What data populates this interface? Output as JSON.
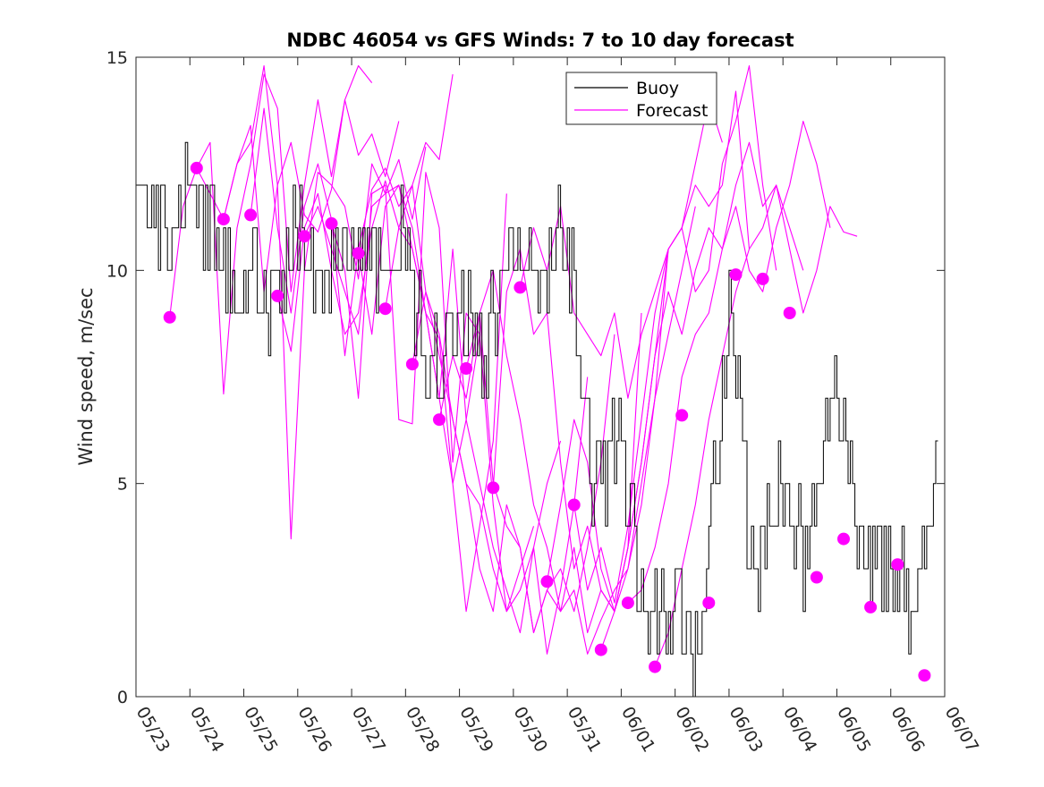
{
  "chart_data": {
    "type": "line",
    "title": "NDBC 46054 vs GFS Winds: 7 to 10 day forecast",
    "ylabel": "Wind speed, m/sec",
    "xlabel": "",
    "ylim": [
      0,
      15
    ],
    "yticks": [
      0,
      5,
      10,
      15
    ],
    "xlim": [
      "05/23",
      "06/07"
    ],
    "xticks": [
      "05/23",
      "05/24",
      "05/25",
      "05/26",
      "05/27",
      "05/28",
      "05/29",
      "05/30",
      "05/31",
      "06/01",
      "06/02",
      "06/03",
      "06/04",
      "06/05",
      "06/06",
      "06/07"
    ],
    "legend": {
      "placement": "top-center",
      "entries": [
        {
          "name": "Buoy",
          "color": "#000000"
        },
        {
          "name": "Forecast",
          "color": "#ff00ff"
        }
      ]
    },
    "grid": false,
    "buoy": {
      "name": "Buoy",
      "color": "#000000",
      "x_dates": [
        "05/23 00:00",
        "05/23 12:00",
        "05/24 00:00",
        "05/24 12:00",
        "05/25 00:00",
        "05/25 12:00",
        "05/26 00:00",
        "05/26 12:00",
        "05/27 00:00",
        "05/27 12:00",
        "05/28 00:00",
        "05/28 12:00",
        "05/29 00:00",
        "05/29 12:00",
        "05/30 00:00",
        "05/30 12:00",
        "05/31 00:00",
        "05/31 12:00",
        "06/01 00:00",
        "06/01 12:00",
        "06/02 00:00",
        "06/02 12:00",
        "06/03 00:00",
        "06/03 12:00",
        "06/04 00:00",
        "06/04 12:00",
        "06/05 00:00",
        "06/05 12:00",
        "06/06 00:00",
        "06/06 12:00",
        "06/06 21:00"
      ],
      "values": [
        12,
        11,
        12,
        11,
        10,
        9,
        11,
        10,
        11,
        10,
        11,
        7,
        9,
        8,
        11,
        9,
        11,
        5,
        6,
        2,
        2,
        1,
        9,
        3,
        5,
        3,
        8,
        3,
        3,
        2,
        5
      ]
    },
    "forecast_points": {
      "name": "Forecast",
      "color": "#ff00ff",
      "x_dates": [
        "05/23 15:00",
        "05/24 03:00",
        "05/24 15:00",
        "05/25 03:00",
        "05/25 15:00",
        "05/26 03:00",
        "05/26 15:00",
        "05/27 03:00",
        "05/27 15:00",
        "05/28 03:00",
        "05/28 15:00",
        "05/29 03:00",
        "05/29 15:00",
        "05/30 03:00",
        "05/30 15:00",
        "05/31 03:00",
        "05/31 15:00",
        "06/01 03:00",
        "06/01 15:00",
        "06/02 03:00",
        "06/02 15:00",
        "06/03 03:00",
        "06/03 15:00",
        "06/04 03:00",
        "06/04 15:00",
        "06/05 03:00",
        "06/05 15:00",
        "06/06 03:00",
        "06/06 15:00"
      ],
      "values": [
        8.9,
        12.4,
        11.2,
        11.3,
        9.4,
        10.8,
        11.1,
        10.4,
        9.1,
        7.8,
        6.5,
        7.7,
        4.9,
        9.6,
        2.7,
        4.5,
        1.1,
        2.2,
        0.7,
        6.6,
        2.2,
        9.9,
        9.8,
        9.0,
        2.8,
        3.7,
        2.1,
        3.1,
        0.5
      ]
    },
    "forecast_lines": {
      "name": "Forecast",
      "color": "#ff00ff",
      "note_series": [
        {
          "start": "05/23 15:00",
          "values": [
            8.9,
            11.5,
            12.4,
            13.0,
            7.1,
            11.0,
            12.5,
            14.6,
            13.8,
            9.5,
            12.0,
            14.0,
            12.2,
            14.0,
            14.8,
            14.4
          ]
        },
        {
          "start": "05/24 03:00",
          "values": [
            12.4,
            11.8,
            11.2,
            12.5,
            13.4,
            9.5,
            12.0,
            13.0,
            11.3,
            10.9,
            11.9,
            14.0,
            12.7,
            13.2,
            12.2,
            13.5
          ]
        },
        {
          "start": "05/24 15:00",
          "values": [
            11.2,
            12.5,
            13.0,
            14.8,
            12.0,
            3.7,
            10.0,
            12.3,
            12.0,
            11.5,
            9.8,
            12.5,
            11.8,
            12.6,
            11.2,
            12.9
          ]
        },
        {
          "start": "05/25 03:00",
          "values": [
            11.3,
            13.8,
            11.0,
            9.0,
            11.5,
            12.5,
            11.2,
            8.0,
            10.5,
            11.9,
            12.4,
            11.5,
            12.0,
            13.0,
            12.6,
            14.6
          ]
        },
        {
          "start": "05/25 15:00",
          "values": [
            9.4,
            8.1,
            11.0,
            11.8,
            10.0,
            8.5,
            9.0,
            11.0,
            12.1,
            11.0,
            10.5,
            9.0,
            7.0,
            5.0,
            6.5,
            8.5
          ]
        },
        {
          "start": "05/26 03:00",
          "values": [
            10.8,
            11.5,
            10.5,
            9.5,
            8.5,
            11.5,
            11.8,
            12.0,
            11.0,
            9.0,
            8.4,
            5.0,
            2.0,
            4.0,
            6.0,
            11.8
          ]
        },
        {
          "start": "05/26 15:00",
          "values": [
            11.1,
            10.0,
            7.0,
            11.8,
            12.0,
            6.5,
            6.4,
            12.3,
            11.0,
            5.5,
            9.0,
            8.5,
            4.5,
            2.0,
            3.0,
            4.0
          ]
        },
        {
          "start": "05/27 03:00",
          "values": [
            10.4,
            8.5,
            11.5,
            12.0,
            10.5,
            9.0,
            7.0,
            10.5,
            6.5,
            5.0,
            3.5,
            2.5,
            1.5,
            3.5,
            5.0,
            6.0
          ]
        },
        {
          "start": "05/27 15:00",
          "values": [
            9.1,
            11.0,
            12.0,
            9.5,
            8.5,
            6.5,
            5.0,
            4.5,
            3.0,
            2.0,
            2.5,
            3.5,
            1.0,
            2.5,
            4.5,
            7.5
          ]
        },
        {
          "start": "05/28 03:00",
          "values": [
            7.8,
            9.5,
            8.0,
            6.5,
            5.0,
            3.0,
            2.0,
            4.5,
            3.5,
            1.5,
            2.5,
            3.0,
            2.0,
            3.5,
            5.5,
            8.5
          ]
        },
        {
          "start": "05/28 15:00",
          "values": [
            6.5,
            8.0,
            7.0,
            9.0,
            5.0,
            4.0,
            3.5,
            1.5,
            2.5,
            2.0,
            3.5,
            1.5,
            2.5,
            2.0,
            3.5,
            9.0
          ]
        },
        {
          "start": "05/29 03:00",
          "values": [
            7.7,
            9.0,
            10.0,
            8.0,
            6.5,
            4.5,
            3.5,
            2.0,
            2.5,
            1.0,
            1.8,
            2.5,
            3.0,
            4.5,
            7.0,
            10.5
          ]
        },
        {
          "start": "05/29 15:00",
          "values": [
            4.9,
            9.5,
            10.5,
            8.5,
            9.0,
            5.5,
            3.0,
            4.0,
            2.5,
            2.0,
            3.0,
            5.0,
            7.0,
            8.5,
            10.0,
            11.5
          ]
        },
        {
          "start": "05/30 03:00",
          "values": [
            9.6,
            11.0,
            10.0,
            11.5,
            9.0,
            8.5,
            8.0,
            9.0,
            7.0,
            8.5,
            9.5,
            10.5,
            11.0,
            12.5,
            14.0,
            13.0
          ]
        },
        {
          "start": "05/30 15:00",
          "values": [
            2.7,
            4.5,
            6.5,
            5.5,
            3.0,
            2.0,
            3.5,
            5.5,
            8.0,
            10.5,
            11.0,
            12.0,
            11.5,
            12.0,
            14.2,
            10.5
          ]
        },
        {
          "start": "05/31 03:00",
          "values": [
            4.5,
            2.5,
            3.5,
            2.2,
            4.0,
            6.5,
            9.0,
            10.5,
            11.0,
            9.5,
            10.0,
            12.5,
            13.5,
            14.8,
            12.0,
            10.0
          ]
        },
        {
          "start": "05/31 15:00",
          "values": [
            1.1,
            2.0,
            3.5,
            5.5,
            8.0,
            9.5,
            8.5,
            10.0,
            11.0,
            10.5,
            12.0,
            13.0,
            11.5,
            12.0,
            11.0,
            10.0
          ]
        },
        {
          "start": "06/01 03:00",
          "values": [
            2.2,
            2.5,
            3.5,
            5.0,
            7.5,
            8.5,
            9.0,
            10.5,
            11.5,
            10.0,
            9.5,
            11.0,
            12.0,
            13.5,
            12.5,
            11.0
          ]
        },
        {
          "start": "06/01 15:00",
          "values": [
            0.7,
            1.5,
            3.0,
            4.5,
            6.5,
            8.0,
            9.5,
            10.5,
            11.0,
            12.0,
            10.5,
            9.0,
            10.0,
            11.5,
            10.9,
            10.8
          ]
        }
      ]
    }
  }
}
